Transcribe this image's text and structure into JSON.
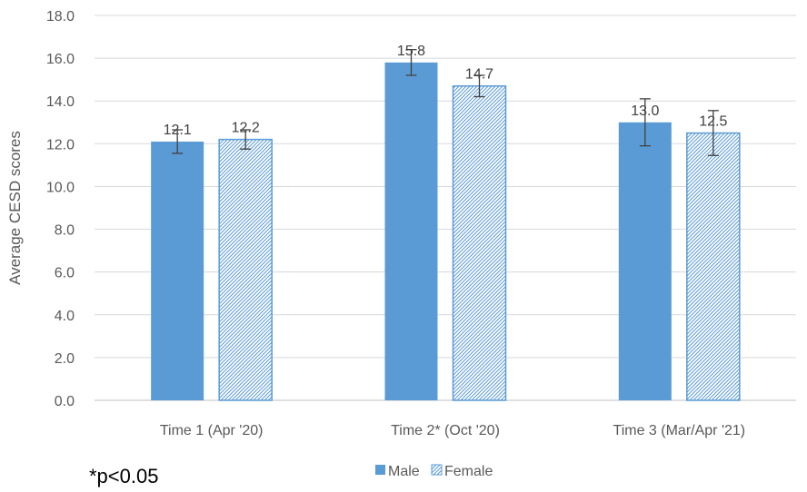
{
  "chart_data": {
    "type": "bar",
    "title": "",
    "xlabel": "",
    "ylabel": "Average CESD scores",
    "ylim": [
      0,
      18
    ],
    "y_ticks": [
      "0.0",
      "2.0",
      "4.0",
      "6.0",
      "8.0",
      "10.0",
      "12.0",
      "14.0",
      "16.0",
      "18.0"
    ],
    "grid": true,
    "legend_position": "bottom",
    "categories": [
      "Time 1 (Apr '20)",
      "Time 2* (Oct '20)",
      "Time 3 (Mar/Apr '21)"
    ],
    "series": [
      {
        "name": "Male",
        "values": [
          12.1,
          15.8,
          13.0
        ],
        "labels": [
          "12.1",
          "15.8",
          "13.0"
        ],
        "error": [
          0.55,
          0.6,
          1.1
        ],
        "color": "#5b9bd5",
        "pattern": "solid"
      },
      {
        "name": "Female",
        "values": [
          12.2,
          14.7,
          12.5
        ],
        "labels": [
          "12.2",
          "14.7",
          "12.5"
        ],
        "error": [
          0.45,
          0.5,
          1.05
        ],
        "color": "#5b9bd5",
        "pattern": "diagonal-hatch"
      }
    ],
    "annotation": "*p<0.05"
  }
}
